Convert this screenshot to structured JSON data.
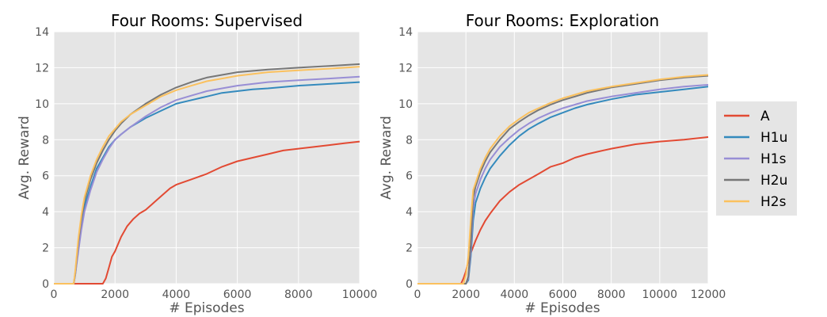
{
  "chart_data": [
    {
      "type": "line",
      "title": "Four Rooms: Supervised",
      "xlabel": "# Episodes",
      "ylabel": "Avg. Reward",
      "xlim": [
        0,
        10000
      ],
      "ylim": [
        0,
        14
      ],
      "xticks": [
        "0",
        "2000",
        "4000",
        "6000",
        "8000",
        "10000"
      ],
      "yticks": [
        "0",
        "2",
        "4",
        "6",
        "8",
        "10",
        "12",
        "14"
      ],
      "grid": true,
      "series": [
        {
          "name": "A",
          "color": "#e24a33",
          "points": [
            [
              0,
              0
            ],
            [
              1600,
              0
            ],
            [
              1700,
              0.3
            ],
            [
              1800,
              0.9
            ],
            [
              1900,
              1.5
            ],
            [
              2000,
              1.8
            ],
            [
              2200,
              2.6
            ],
            [
              2400,
              3.2
            ],
            [
              2600,
              3.6
            ],
            [
              2800,
              3.9
            ],
            [
              3000,
              4.1
            ],
            [
              3200,
              4.4
            ],
            [
              3400,
              4.7
            ],
            [
              3600,
              5.0
            ],
            [
              3800,
              5.3
            ],
            [
              4000,
              5.5
            ],
            [
              4500,
              5.8
            ],
            [
              5000,
              6.1
            ],
            [
              5500,
              6.5
            ],
            [
              6000,
              6.8
            ],
            [
              6500,
              7.0
            ],
            [
              7000,
              7.2
            ],
            [
              7500,
              7.4
            ],
            [
              8000,
              7.5
            ],
            [
              8500,
              7.6
            ],
            [
              9000,
              7.7
            ],
            [
              9500,
              7.8
            ],
            [
              10000,
              7.9
            ]
          ]
        },
        {
          "name": "H1u",
          "color": "#348abd",
          "points": [
            [
              0,
              0
            ],
            [
              650,
              0
            ],
            [
              700,
              0.5
            ],
            [
              800,
              2.0
            ],
            [
              900,
              3.2
            ],
            [
              1000,
              4.3
            ],
            [
              1200,
              5.4
            ],
            [
              1400,
              6.4
            ],
            [
              1600,
              7.0
            ],
            [
              1800,
              7.6
            ],
            [
              2000,
              8.0
            ],
            [
              2200,
              8.3
            ],
            [
              2500,
              8.7
            ],
            [
              3000,
              9.2
            ],
            [
              3500,
              9.6
            ],
            [
              4000,
              10.0
            ],
            [
              4500,
              10.2
            ],
            [
              5000,
              10.4
            ],
            [
              5500,
              10.6
            ],
            [
              6000,
              10.7
            ],
            [
              6500,
              10.8
            ],
            [
              7000,
              10.85
            ],
            [
              8000,
              11.0
            ],
            [
              9000,
              11.1
            ],
            [
              10000,
              11.2
            ]
          ]
        },
        {
          "name": "H1s",
          "color": "#988ed5",
          "points": [
            [
              0,
              0
            ],
            [
              650,
              0
            ],
            [
              700,
              0.5
            ],
            [
              800,
              1.8
            ],
            [
              900,
              3.0
            ],
            [
              1000,
              4.0
            ],
            [
              1200,
              5.2
            ],
            [
              1400,
              6.2
            ],
            [
              1600,
              6.9
            ],
            [
              1800,
              7.5
            ],
            [
              2000,
              8.0
            ],
            [
              2200,
              8.3
            ],
            [
              2500,
              8.7
            ],
            [
              3000,
              9.3
            ],
            [
              3500,
              9.8
            ],
            [
              4000,
              10.2
            ],
            [
              4500,
              10.45
            ],
            [
              5000,
              10.7
            ],
            [
              5500,
              10.85
            ],
            [
              6000,
              11.0
            ],
            [
              7000,
              11.2
            ],
            [
              8000,
              11.3
            ],
            [
              9000,
              11.4
            ],
            [
              10000,
              11.5
            ]
          ]
        },
        {
          "name": "H2u",
          "color": "#777777",
          "points": [
            [
              0,
              0
            ],
            [
              650,
              0
            ],
            [
              700,
              0.6
            ],
            [
              800,
              2.3
            ],
            [
              900,
              3.6
            ],
            [
              1000,
              4.6
            ],
            [
              1200,
              5.8
            ],
            [
              1400,
              6.7
            ],
            [
              1600,
              7.4
            ],
            [
              1800,
              8.0
            ],
            [
              2000,
              8.5
            ],
            [
              2200,
              8.9
            ],
            [
              2500,
              9.4
            ],
            [
              3000,
              10.0
            ],
            [
              3500,
              10.5
            ],
            [
              4000,
              10.9
            ],
            [
              4500,
              11.2
            ],
            [
              5000,
              11.45
            ],
            [
              5500,
              11.6
            ],
            [
              6000,
              11.75
            ],
            [
              7000,
              11.9
            ],
            [
              8000,
              12.0
            ],
            [
              9000,
              12.1
            ],
            [
              10000,
              12.2
            ]
          ]
        },
        {
          "name": "H2s",
          "color": "#fbc15e",
          "points": [
            [
              0,
              0
            ],
            [
              650,
              0
            ],
            [
              700,
              0.7
            ],
            [
              800,
              2.5
            ],
            [
              900,
              3.8
            ],
            [
              1000,
              4.8
            ],
            [
              1200,
              6.0
            ],
            [
              1400,
              6.9
            ],
            [
              1600,
              7.6
            ],
            [
              1800,
              8.2
            ],
            [
              2000,
              8.6
            ],
            [
              2200,
              9.0
            ],
            [
              2500,
              9.4
            ],
            [
              3000,
              9.9
            ],
            [
              3500,
              10.4
            ],
            [
              4000,
              10.75
            ],
            [
              4500,
              11.0
            ],
            [
              5000,
              11.25
            ],
            [
              5500,
              11.4
            ],
            [
              6000,
              11.55
            ],
            [
              7000,
              11.75
            ],
            [
              8000,
              11.85
            ],
            [
              9000,
              11.95
            ],
            [
              10000,
              12.05
            ]
          ]
        }
      ]
    },
    {
      "type": "line",
      "title": "Four Rooms: Exploration",
      "xlabel": "# Episodes",
      "ylabel": "Avg. Reward",
      "xlim": [
        0,
        12000
      ],
      "ylim": [
        0,
        14
      ],
      "xticks": [
        "0",
        "2000",
        "4000",
        "6000",
        "8000",
        "10000",
        "12000"
      ],
      "yticks": [
        "0",
        "2",
        "4",
        "6",
        "8",
        "10",
        "12",
        "14"
      ],
      "grid": true,
      "series": [
        {
          "name": "A",
          "color": "#e24a33",
          "points": [
            [
              0,
              0
            ],
            [
              1800,
              0
            ],
            [
              1900,
              0.3
            ],
            [
              2000,
              0.7
            ],
            [
              2100,
              1.3
            ],
            [
              2200,
              1.7
            ],
            [
              2400,
              2.4
            ],
            [
              2600,
              3.0
            ],
            [
              2800,
              3.5
            ],
            [
              3000,
              3.9
            ],
            [
              3400,
              4.6
            ],
            [
              3800,
              5.1
            ],
            [
              4200,
              5.5
            ],
            [
              4600,
              5.8
            ],
            [
              5000,
              6.1
            ],
            [
              5500,
              6.5
            ],
            [
              6000,
              6.7
            ],
            [
              6500,
              7.0
            ],
            [
              7000,
              7.2
            ],
            [
              7500,
              7.35
            ],
            [
              8000,
              7.5
            ],
            [
              9000,
              7.75
            ],
            [
              10000,
              7.9
            ],
            [
              11000,
              8.0
            ],
            [
              12000,
              8.15
            ]
          ]
        },
        {
          "name": "H1u",
          "color": "#348abd",
          "points": [
            [
              0,
              0
            ],
            [
              2000,
              0
            ],
            [
              2100,
              0.2
            ],
            [
              2200,
              1.5
            ],
            [
              2300,
              3.5
            ],
            [
              2400,
              4.5
            ],
            [
              2600,
              5.3
            ],
            [
              2800,
              5.9
            ],
            [
              3000,
              6.4
            ],
            [
              3400,
              7.1
            ],
            [
              3800,
              7.7
            ],
            [
              4200,
              8.2
            ],
            [
              4600,
              8.6
            ],
            [
              5000,
              8.9
            ],
            [
              5500,
              9.25
            ],
            [
              6000,
              9.5
            ],
            [
              6500,
              9.75
            ],
            [
              7000,
              9.95
            ],
            [
              8000,
              10.25
            ],
            [
              9000,
              10.5
            ],
            [
              10000,
              10.65
            ],
            [
              11000,
              10.8
            ],
            [
              12000,
              10.95
            ]
          ]
        },
        {
          "name": "H1s",
          "color": "#988ed5",
          "points": [
            [
              0,
              0
            ],
            [
              2000,
              0
            ],
            [
              2100,
              0.3
            ],
            [
              2200,
              1.8
            ],
            [
              2300,
              4.2
            ],
            [
              2400,
              5.0
            ],
            [
              2600,
              5.8
            ],
            [
              2800,
              6.4
            ],
            [
              3000,
              6.9
            ],
            [
              3400,
              7.6
            ],
            [
              3800,
              8.1
            ],
            [
              4200,
              8.55
            ],
            [
              4600,
              8.9
            ],
            [
              5000,
              9.2
            ],
            [
              5500,
              9.5
            ],
            [
              6000,
              9.75
            ],
            [
              6500,
              9.95
            ],
            [
              7000,
              10.15
            ],
            [
              8000,
              10.4
            ],
            [
              9000,
              10.6
            ],
            [
              10000,
              10.8
            ],
            [
              11000,
              10.95
            ],
            [
              12000,
              11.05
            ]
          ]
        },
        {
          "name": "H2u",
          "color": "#777777",
          "points": [
            [
              0,
              0
            ],
            [
              2000,
              0
            ],
            [
              2100,
              0.4
            ],
            [
              2200,
              2.2
            ],
            [
              2300,
              4.8
            ],
            [
              2400,
              5.4
            ],
            [
              2600,
              6.2
            ],
            [
              2800,
              6.8
            ],
            [
              3000,
              7.3
            ],
            [
              3400,
              8.0
            ],
            [
              3800,
              8.6
            ],
            [
              4200,
              9.0
            ],
            [
              4600,
              9.35
            ],
            [
              5000,
              9.65
            ],
            [
              5500,
              9.95
            ],
            [
              6000,
              10.2
            ],
            [
              6500,
              10.4
            ],
            [
              7000,
              10.6
            ],
            [
              8000,
              10.9
            ],
            [
              9000,
              11.1
            ],
            [
              10000,
              11.3
            ],
            [
              11000,
              11.45
            ],
            [
              12000,
              11.55
            ]
          ]
        },
        {
          "name": "H2s",
          "color": "#fbc15e",
          "points": [
            [
              0,
              0
            ],
            [
              1900,
              0
            ],
            [
              2000,
              0.5
            ],
            [
              2100,
              1.5
            ],
            [
              2200,
              3.5
            ],
            [
              2300,
              5.2
            ],
            [
              2400,
              5.6
            ],
            [
              2600,
              6.4
            ],
            [
              2800,
              7.0
            ],
            [
              3000,
              7.5
            ],
            [
              3400,
              8.2
            ],
            [
              3800,
              8.75
            ],
            [
              4200,
              9.15
            ],
            [
              4600,
              9.5
            ],
            [
              5000,
              9.75
            ],
            [
              5500,
              10.05
            ],
            [
              6000,
              10.3
            ],
            [
              6500,
              10.5
            ],
            [
              7000,
              10.7
            ],
            [
              8000,
              10.95
            ],
            [
              9000,
              11.15
            ],
            [
              10000,
              11.35
            ],
            [
              11000,
              11.5
            ],
            [
              12000,
              11.6
            ]
          ]
        }
      ]
    }
  ],
  "legend": {
    "placement": "right",
    "entries": [
      {
        "label": "A",
        "color": "#e24a33"
      },
      {
        "label": "H1u",
        "color": "#348abd"
      },
      {
        "label": "H1s",
        "color": "#988ed5"
      },
      {
        "label": "H2u",
        "color": "#777777"
      },
      {
        "label": "H2s",
        "color": "#fbc15e"
      }
    ]
  }
}
